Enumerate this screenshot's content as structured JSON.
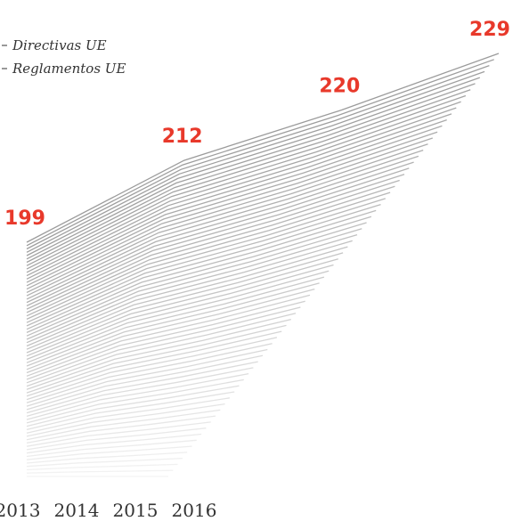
{
  "chart_data": {
    "type": "line",
    "categories": [
      "2013",
      "2014",
      "2015",
      "2016"
    ],
    "values": [
      199,
      212,
      220,
      229
    ],
    "legend": [
      "Directivas UE",
      "Reglamentos UE"
    ],
    "color": "#8a8a8a",
    "label_color": "#e8392b"
  }
}
